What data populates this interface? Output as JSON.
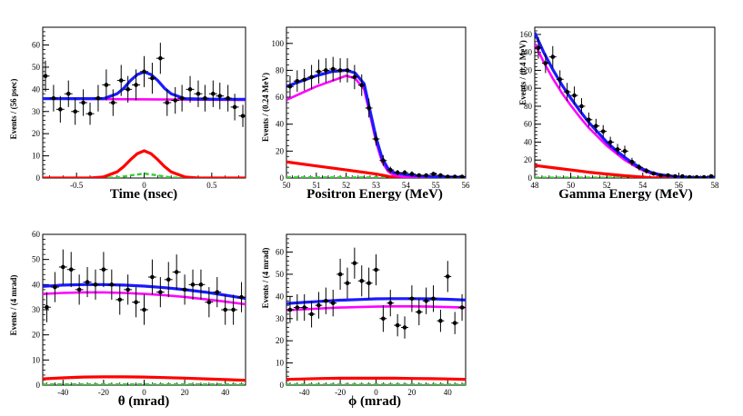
{
  "figure": {
    "colors": {
      "data": "#000000",
      "total_fit": "#1a1aff",
      "background": "#ff00ff",
      "signal": "#ff0000",
      "other": "#33cc33",
      "frame": "#000000"
    },
    "legend": "none"
  },
  "chart_data": [
    {
      "id": "time",
      "type": "scatter",
      "title": "",
      "xlabel": "Time (nsec)",
      "ylabel": "Events / (56 psec)",
      "xlim": [
        -0.75,
        0.75
      ],
      "ylim": [
        0,
        68
      ],
      "xticks": [
        -0.5,
        0,
        0.5
      ],
      "xtick_labels": [
        "-0.5",
        "0",
        "0.5"
      ],
      "yticks": [
        0,
        10,
        20,
        30,
        40,
        50,
        60
      ],
      "ytick_labels": [
        "0",
        "10",
        "20",
        "30",
        "40",
        "50",
        "60"
      ],
      "points": {
        "x": [
          -0.73,
          -0.67,
          -0.62,
          -0.56,
          -0.51,
          -0.45,
          -0.4,
          -0.34,
          -0.28,
          -0.23,
          -0.17,
          -0.12,
          -0.06,
          0.0,
          0.06,
          0.12,
          0.17,
          0.23,
          0.28,
          0.34,
          0.4,
          0.45,
          0.51,
          0.56,
          0.62,
          0.67,
          0.73
        ],
        "y": [
          46,
          36,
          31,
          38,
          30,
          34,
          29,
          36,
          42,
          34,
          44,
          40,
          42,
          48,
          45,
          54,
          34,
          35,
          36,
          40,
          38,
          36,
          38,
          37,
          36,
          32,
          28
        ],
        "yerr": [
          7,
          6,
          6,
          6,
          6,
          6,
          5,
          6,
          7,
          6,
          7,
          6,
          7,
          7,
          7,
          7,
          6,
          6,
          6,
          6,
          6,
          6,
          6,
          6,
          6,
          6,
          5
        ]
      },
      "curves": [
        {
          "name": "total fit",
          "role": "total_fit",
          "x": [
            -0.75,
            -0.6,
            -0.45,
            -0.3,
            -0.2,
            -0.15,
            -0.1,
            -0.05,
            0.0,
            0.05,
            0.1,
            0.15,
            0.2,
            0.3,
            0.45,
            0.6,
            0.75
          ],
          "y": [
            35.8,
            35.8,
            35.8,
            35.8,
            38,
            40.5,
            44,
            46.7,
            47.8,
            46.7,
            44,
            40.5,
            38,
            35.8,
            35.6,
            35.5,
            35.5
          ]
        },
        {
          "name": "background",
          "role": "background",
          "x": [
            -0.75,
            0.75
          ],
          "y": [
            35.8,
            35.2
          ]
        },
        {
          "name": "signal",
          "role": "signal",
          "x": [
            -0.75,
            -0.4,
            -0.3,
            -0.2,
            -0.15,
            -0.1,
            -0.05,
            0.0,
            0.05,
            0.1,
            0.15,
            0.2,
            0.3,
            0.4,
            0.75
          ],
          "y": [
            0,
            0,
            0.5,
            2.8,
            5.2,
            8.3,
            11,
            12.3,
            11,
            8.3,
            5.2,
            2.8,
            0.5,
            0,
            0
          ]
        },
        {
          "name": "other",
          "role": "other",
          "x": [
            -0.75,
            -0.2,
            -0.1,
            0.0,
            0.1,
            0.2,
            0.75
          ],
          "y": [
            0,
            0.2,
            1.2,
            2,
            1.2,
            0.2,
            0
          ]
        }
      ]
    },
    {
      "id": "positron",
      "type": "scatter",
      "title": "",
      "xlabel": "Positron Energy (MeV)",
      "ylabel": "Events / (0.24 MeV)",
      "xlim": [
        50,
        56
      ],
      "ylim": [
        0,
        112
      ],
      "xticks": [
        50,
        51,
        52,
        53,
        54,
        55,
        56
      ],
      "xtick_labels": [
        "50",
        "51",
        "52",
        "53",
        "54",
        "55",
        "56"
      ],
      "yticks": [
        0,
        20,
        40,
        60,
        80,
        100
      ],
      "ytick_labels": [
        "0",
        "20",
        "40",
        "60",
        "80",
        "100"
      ],
      "points": {
        "x": [
          50.12,
          50.36,
          50.6,
          50.84,
          51.08,
          51.32,
          51.56,
          51.8,
          52.04,
          52.28,
          52.52,
          52.76,
          53.0,
          53.24,
          53.48,
          53.72,
          53.96,
          54.2,
          54.44,
          54.68,
          54.92,
          55.16,
          55.4,
          55.64,
          55.88
        ],
        "y": [
          68,
          72,
          73,
          75,
          79,
          80,
          81,
          80,
          80,
          75,
          69,
          52,
          29,
          13,
          6,
          4,
          4,
          3,
          2,
          2,
          3,
          2,
          1,
          1,
          1
        ],
        "yerr": [
          8,
          8,
          8,
          9,
          9,
          9,
          9,
          9,
          9,
          9,
          8,
          7,
          5,
          4,
          2.5,
          2,
          2,
          2,
          1.5,
          1.5,
          1.7,
          1.5,
          1,
          1,
          1
        ]
      },
      "curves": [
        {
          "name": "total fit",
          "role": "total_fit",
          "x": [
            50,
            50.5,
            51,
            51.5,
            52,
            52.3,
            52.6,
            52.8,
            53,
            53.2,
            53.4,
            53.6,
            54,
            54.5,
            55,
            56
          ],
          "y": [
            68,
            72,
            76,
            79,
            80,
            78,
            70,
            50,
            30,
            15,
            7,
            4,
            2.5,
            1.5,
            1,
            0.5
          ]
        },
        {
          "name": "background",
          "role": "background",
          "x": [
            50,
            50.5,
            51,
            51.5,
            52,
            52.3,
            52.6,
            52.8,
            53,
            53.2,
            53.4,
            53.6,
            54,
            54.5,
            55,
            56
          ],
          "y": [
            58,
            63,
            68,
            72,
            76,
            74,
            66,
            47,
            27,
            12,
            5,
            2,
            0.5,
            0,
            0,
            0
          ]
        },
        {
          "name": "signal",
          "role": "signal",
          "x": [
            50,
            51,
            52,
            53,
            53.6,
            56
          ],
          "y": [
            12,
            9,
            6,
            3,
            0.5,
            0
          ]
        },
        {
          "name": "other",
          "role": "other",
          "x": [
            50,
            56
          ],
          "y": [
            0.5,
            0.5
          ]
        }
      ]
    },
    {
      "id": "gamma",
      "type": "scatter",
      "title": "",
      "xlabel": "Gamma Energy (MeV)",
      "ylabel": "Events / (0.4 MeV)",
      "xlim": [
        48,
        58
      ],
      "ylim": [
        0,
        168
      ],
      "xticks": [
        48,
        50,
        52,
        54,
        56,
        58
      ],
      "xtick_labels": [
        "48",
        "50",
        "52",
        "54",
        "56",
        "58"
      ],
      "yticks": [
        0,
        20,
        40,
        60,
        80,
        100,
        120,
        140,
        160
      ],
      "ytick_labels": [
        "0",
        "20",
        "40",
        "60",
        "80",
        "100",
        "120",
        "140",
        "160"
      ],
      "points": {
        "x": [
          48.2,
          48.6,
          49.0,
          49.4,
          49.8,
          50.2,
          50.6,
          51.0,
          51.4,
          51.8,
          52.2,
          52.6,
          53.0,
          53.4,
          53.8,
          54.2,
          54.6,
          55.0,
          55.4,
          55.8,
          56.2,
          56.6,
          57.0,
          57.4,
          57.8
        ],
        "y": [
          145,
          128,
          135,
          110,
          96,
          92,
          80,
          65,
          58,
          52,
          40,
          32,
          30,
          18,
          12,
          8,
          5,
          3,
          3,
          2,
          2,
          1,
          1,
          1,
          2
        ],
        "yerr": [
          12,
          11,
          12,
          10,
          10,
          10,
          9,
          8,
          8,
          7,
          6,
          6,
          6,
          4.5,
          3.5,
          3,
          2.3,
          1.7,
          1.7,
          1.5,
          1.5,
          1,
          1,
          1,
          1.5
        ]
      },
      "curves": [
        {
          "name": "total fit",
          "role": "total_fit",
          "x": [
            48,
            48.5,
            49,
            49.5,
            50,
            50.5,
            51,
            51.5,
            52,
            52.5,
            53,
            53.5,
            54,
            54.5,
            55,
            56,
            57,
            58
          ],
          "y": [
            162,
            140,
            121,
            104,
            89,
            75,
            62,
            51,
            40,
            31,
            23,
            16,
            10,
            6,
            3.5,
            1.2,
            0.5,
            0.3
          ]
        },
        {
          "name": "background",
          "role": "background",
          "x": [
            48,
            48.5,
            49,
            49.5,
            50,
            50.5,
            51,
            51.5,
            52,
            52.5,
            53,
            53.5,
            54,
            54.5,
            55,
            56,
            57,
            58
          ],
          "y": [
            150,
            129,
            111,
            95,
            81,
            68,
            56,
            46,
            36,
            28,
            20,
            14,
            8.5,
            5,
            3,
            1,
            0.4,
            0.2
          ]
        },
        {
          "name": "signal",
          "role": "signal",
          "x": [
            48,
            49,
            50,
            51,
            52,
            53,
            54,
            54.5,
            58
          ],
          "y": [
            14,
            11.5,
            9,
            6.5,
            4.5,
            2.5,
            1,
            0.3,
            0
          ]
        },
        {
          "name": "other",
          "role": "other",
          "x": [
            48,
            58
          ],
          "y": [
            0.4,
            0.4
          ]
        }
      ]
    },
    {
      "id": "theta",
      "type": "scatter",
      "title": "",
      "xlabel": "θ (mrad)",
      "ylabel": "Events / (4 mrad)",
      "xlim": [
        -50,
        50
      ],
      "ylim": [
        0,
        60
      ],
      "xticks": [
        -40,
        -20,
        0,
        20,
        40
      ],
      "xtick_labels": [
        "-40",
        "-20",
        "0",
        "20",
        "40"
      ],
      "yticks": [
        0,
        10,
        20,
        30,
        40,
        50,
        60
      ],
      "ytick_labels": [
        "0",
        "10",
        "20",
        "30",
        "40",
        "50",
        "60"
      ],
      "points": {
        "x": [
          -48,
          -44,
          -40,
          -36,
          -32,
          -28,
          -24,
          -20,
          -16,
          -12,
          -8,
          -4,
          0,
          4,
          8,
          12,
          16,
          20,
          24,
          28,
          32,
          36,
          40,
          44,
          48
        ],
        "y": [
          31,
          39,
          47,
          46,
          38,
          41,
          40,
          46,
          40,
          34,
          38,
          33,
          30,
          43,
          37,
          42,
          45,
          38,
          40,
          40,
          33,
          37,
          30,
          30,
          35
        ],
        "yerr": [
          6,
          6,
          7,
          7,
          6,
          6,
          6,
          7,
          6,
          6,
          6,
          6,
          6,
          7,
          6,
          7,
          7,
          6,
          6,
          6,
          6,
          6,
          6,
          6,
          6
        ]
      },
      "curves": [
        {
          "name": "total fit",
          "role": "total_fit",
          "x": [
            -50,
            -40,
            -30,
            -20,
            -10,
            0,
            10,
            20,
            30,
            40,
            50
          ],
          "y": [
            39.3,
            39.8,
            40,
            40,
            39.8,
            39.4,
            38.8,
            38,
            37,
            35.8,
            34.5
          ]
        },
        {
          "name": "background",
          "role": "background",
          "x": [
            -50,
            -40,
            -30,
            -20,
            -10,
            0,
            10,
            20,
            30,
            40,
            50
          ],
          "y": [
            36.3,
            36.7,
            36.9,
            36.9,
            36.7,
            36.3,
            35.8,
            35.1,
            34.2,
            33.2,
            32.2
          ]
        },
        {
          "name": "signal",
          "role": "signal",
          "x": [
            -50,
            -40,
            -30,
            -20,
            -10,
            0,
            10,
            20,
            30,
            40,
            50
          ],
          "y": [
            2.5,
            2.9,
            3.2,
            3.3,
            3.3,
            3.2,
            3,
            2.8,
            2.5,
            2.2,
            1.9
          ]
        },
        {
          "name": "other",
          "role": "other",
          "x": [
            -50,
            50
          ],
          "y": [
            0.3,
            0.3
          ]
        }
      ]
    },
    {
      "id": "phi",
      "type": "scatter",
      "title": "",
      "xlabel": "ϕ (mrad)",
      "ylabel": "Events / (4 mrad)",
      "xlim": [
        -50,
        50
      ],
      "ylim": [
        0,
        68
      ],
      "xticks": [
        -40,
        -20,
        0,
        20,
        40
      ],
      "xtick_labels": [
        "-40",
        "-20",
        "0",
        "20",
        "40"
      ],
      "yticks": [
        0,
        10,
        20,
        30,
        40,
        50,
        60
      ],
      "ytick_labels": [
        "0",
        "10",
        "20",
        "30",
        "40",
        "50",
        "60"
      ],
      "points": {
        "x": [
          -48,
          -44,
          -40,
          -36,
          -32,
          -28,
          -24,
          -20,
          -16,
          -12,
          -8,
          -4,
          0,
          4,
          8,
          12,
          16,
          20,
          24,
          28,
          32,
          36,
          40,
          44,
          48
        ],
        "y": [
          34,
          35,
          35,
          32,
          36,
          38,
          37,
          50,
          46,
          55,
          47,
          46,
          52,
          30,
          37,
          27,
          26,
          39,
          33,
          38,
          39,
          29,
          49,
          28,
          35
        ],
        "yerr": [
          6,
          6,
          6,
          6,
          6,
          6,
          6,
          7,
          7,
          7,
          7,
          7,
          7,
          6,
          6,
          5,
          5,
          6,
          6,
          6,
          6,
          5,
          7,
          5,
          6
        ]
      },
      "curves": [
        {
          "name": "total fit",
          "role": "total_fit",
          "x": [
            -50,
            -40,
            -30,
            -20,
            -10,
            0,
            10,
            20,
            30,
            40,
            50
          ],
          "y": [
            36.8,
            37.3,
            37.8,
            38.3,
            38.6,
            38.9,
            39,
            39,
            38.9,
            38.7,
            38.4
          ]
        },
        {
          "name": "background",
          "role": "background",
          "x": [
            -50,
            -40,
            -30,
            -20,
            -10,
            0,
            10,
            20,
            30,
            40,
            50
          ],
          "y": [
            33.8,
            34.2,
            34.6,
            35,
            35.2,
            35.4,
            35.5,
            35.5,
            35.4,
            35.2,
            35
          ]
        },
        {
          "name": "signal",
          "role": "signal",
          "x": [
            -50,
            -40,
            -30,
            -20,
            -10,
            0,
            10,
            20,
            30,
            40,
            50
          ],
          "y": [
            2.6,
            2.8,
            3,
            3.1,
            3.1,
            3.1,
            3.1,
            3,
            2.9,
            2.8,
            2.6
          ]
        },
        {
          "name": "other",
          "role": "other",
          "x": [
            -50,
            50
          ],
          "y": [
            0.3,
            0.3
          ]
        }
      ]
    }
  ]
}
